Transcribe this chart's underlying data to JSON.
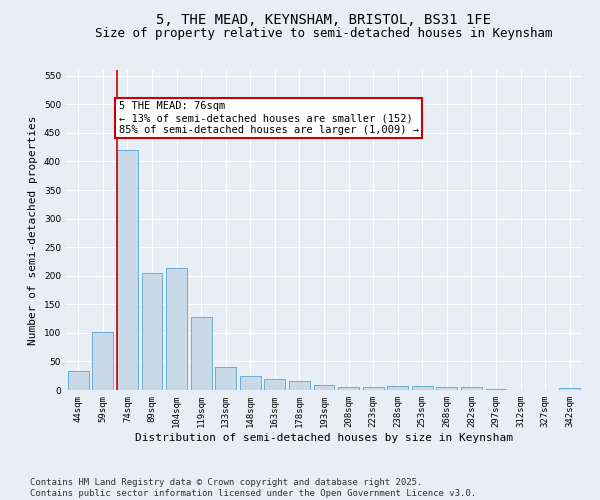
{
  "title": "5, THE MEAD, KEYNSHAM, BRISTOL, BS31 1FE",
  "subtitle": "Size of property relative to semi-detached houses in Keynsham",
  "xlabel": "Distribution of semi-detached houses by size in Keynsham",
  "ylabel": "Number of semi-detached properties",
  "categories": [
    "44sqm",
    "59sqm",
    "74sqm",
    "89sqm",
    "104sqm",
    "119sqm",
    "133sqm",
    "148sqm",
    "163sqm",
    "178sqm",
    "193sqm",
    "208sqm",
    "223sqm",
    "238sqm",
    "253sqm",
    "268sqm",
    "282sqm",
    "297sqm",
    "312sqm",
    "327sqm",
    "342sqm"
  ],
  "values": [
    33,
    101,
    420,
    204,
    214,
    127,
    40,
    25,
    19,
    16,
    9,
    5,
    5,
    7,
    7,
    6,
    5,
    1,
    0,
    0,
    3
  ],
  "bar_color": "#c9d9e8",
  "bar_edge_color": "#6aaed6",
  "subject_bar_index": 2,
  "vline_color": "#cc0000",
  "annotation_text": "5 THE MEAD: 76sqm\n← 13% of semi-detached houses are smaller (152)\n85% of semi-detached houses are larger (1,009) →",
  "annotation_box_color": "#ffffff",
  "annotation_box_edge_color": "#cc0000",
  "ylim": [
    0,
    560
  ],
  "yticks": [
    0,
    50,
    100,
    150,
    200,
    250,
    300,
    350,
    400,
    450,
    500,
    550
  ],
  "background_color": "#e8eef5",
  "footnote": "Contains HM Land Registry data © Crown copyright and database right 2025.\nContains public sector information licensed under the Open Government Licence v3.0.",
  "title_fontsize": 10,
  "subtitle_fontsize": 9,
  "axis_label_fontsize": 8,
  "tick_fontsize": 6.5,
  "annotation_fontsize": 7.5,
  "footnote_fontsize": 6.5
}
